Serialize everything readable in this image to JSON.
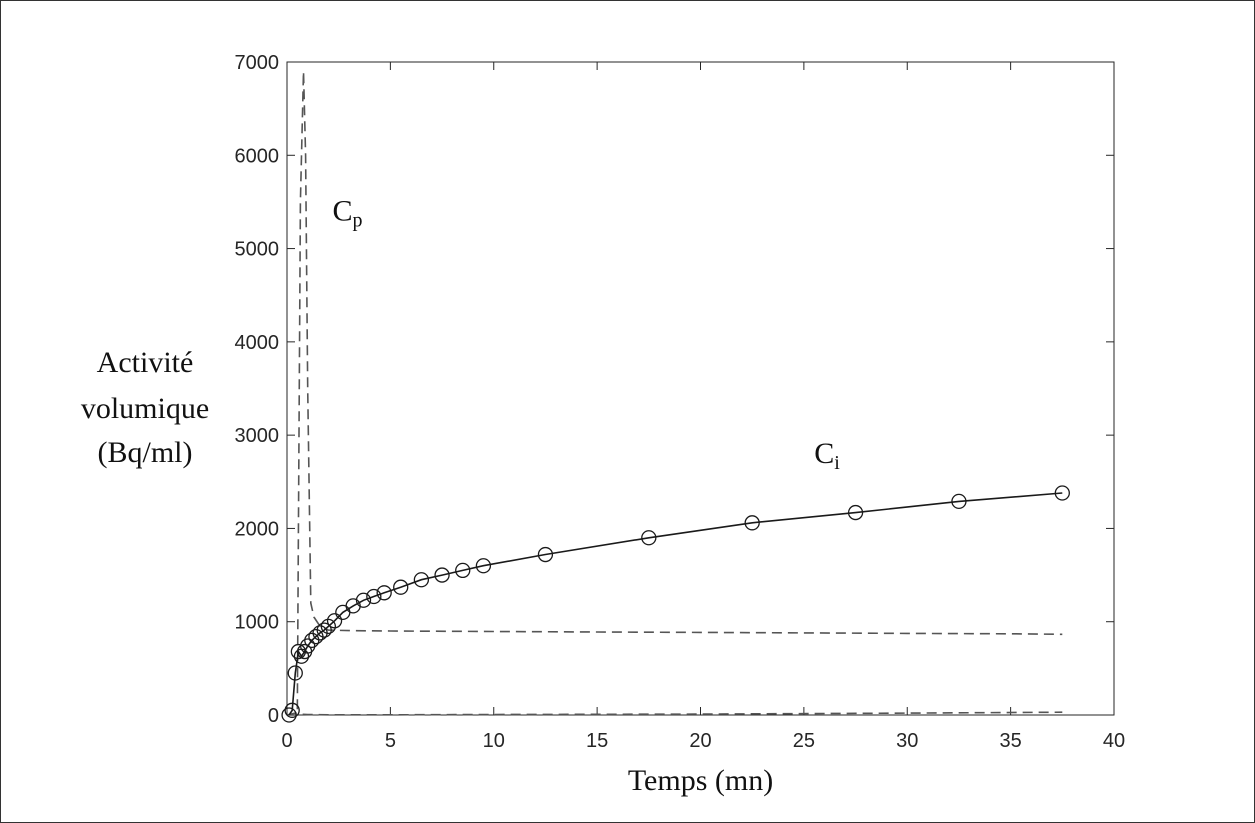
{
  "chart_data": {
    "type": "line",
    "xlabel": "Temps (mn)",
    "ylabel": [
      "Activité",
      "volumique",
      "(Bq/ml)"
    ],
    "xlim": [
      0,
      40
    ],
    "ylim": [
      0,
      7000
    ],
    "xticks": [
      0,
      5,
      10,
      15,
      20,
      25,
      30,
      35,
      40
    ],
    "yticks": [
      0,
      1000,
      2000,
      3000,
      4000,
      5000,
      6000,
      7000
    ],
    "grid": false,
    "annotations": [
      {
        "text": "C",
        "sub": "p",
        "x": 2.2,
        "y": 5300
      },
      {
        "text": "C",
        "sub": "i",
        "x": 25.5,
        "y": 2700
      }
    ],
    "series": [
      {
        "style": "dashed",
        "color": "#555555",
        "x": [
          0,
          0.3,
          0.5,
          0.65,
          0.8,
          0.9,
          1.0,
          1.15,
          1.3,
          1.6,
          2.0,
          3,
          5,
          10,
          15,
          20,
          25,
          30,
          35,
          37.5
        ],
        "y": [
          0,
          0,
          0,
          5500,
          6900,
          6000,
          3500,
          1200,
          1050,
          950,
          910,
          905,
          900,
          895,
          890,
          885,
          880,
          875,
          870,
          865
        ]
      },
      {
        "style": "dashed",
        "color": "#555555",
        "x": [
          0,
          0.4,
          0.6,
          1.0,
          1.5,
          2.0,
          5,
          10,
          20,
          30,
          37.5
        ],
        "y": [
          0,
          20,
          10,
          5,
          3,
          2,
          2,
          5,
          10,
          20,
          30
        ]
      },
      {
        "style": "solid-markers",
        "color": "#1a1a1a",
        "x": [
          0.1,
          0.25,
          0.4,
          0.55,
          0.7,
          0.85,
          1.0,
          1.2,
          1.4,
          1.6,
          1.8,
          2.0,
          2.3,
          2.7,
          3.2,
          3.7,
          4.2,
          4.7,
          5.5,
          6.5,
          7.5,
          8.5,
          9.5,
          12.5,
          17.5,
          22.5,
          27.5,
          32.5,
          37.5
        ],
        "y": [
          0,
          50,
          450,
          680,
          630,
          680,
          740,
          800,
          840,
          880,
          910,
          950,
          1010,
          1100,
          1170,
          1230,
          1270,
          1310,
          1370,
          1450,
          1500,
          1550,
          1600,
          1720,
          1900,
          2060,
          2170,
          2290,
          2380
        ]
      }
    ]
  }
}
